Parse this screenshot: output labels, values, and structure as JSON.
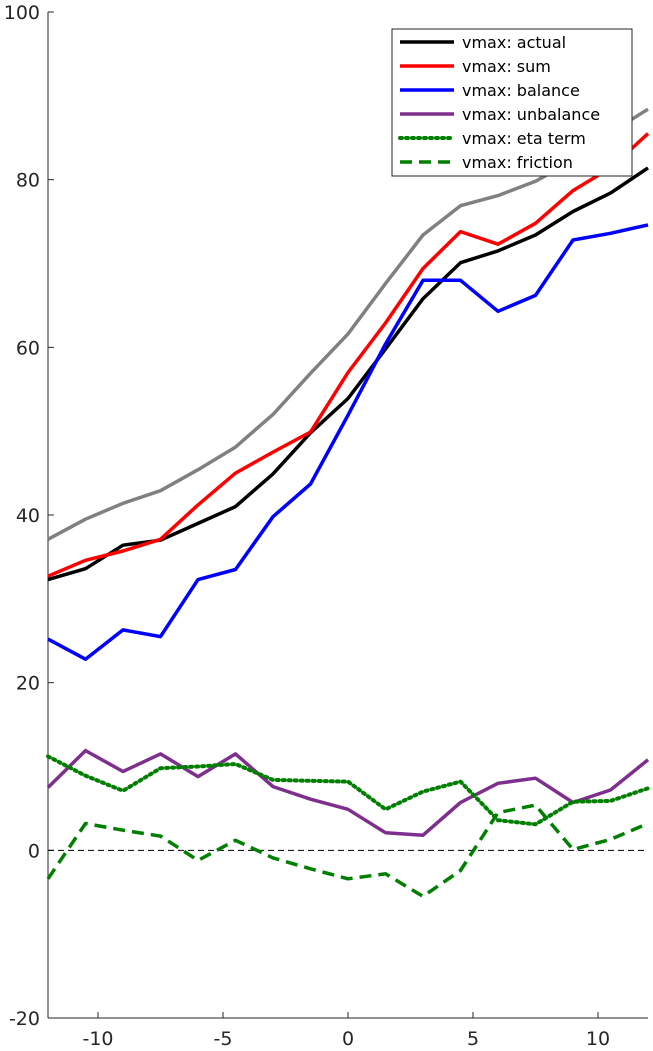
{
  "chart_data": {
    "type": "line",
    "xlim": [
      -12,
      12
    ],
    "ylim": [
      -20,
      100
    ],
    "x_ticks": [
      -10,
      -5,
      0,
      5,
      10
    ],
    "y_ticks": [
      -20,
      0,
      20,
      40,
      60,
      80,
      100
    ],
    "grid": false,
    "legend_position": "top-right",
    "reference_lines": [
      {
        "y": 0,
        "style": "dashed",
        "color": "#000000"
      }
    ],
    "x": [
      -12,
      -10.5,
      -9,
      -7.5,
      -6,
      -4.5,
      -3,
      -1.5,
      0,
      1.5,
      3,
      4.5,
      6,
      7.5,
      9,
      10.5,
      12
    ],
    "series": [
      {
        "name": "vmax: actual",
        "color": "#000000",
        "dash": "solid",
        "in_legend": true,
        "values": [
          32.3,
          33.6,
          36.4,
          37.0,
          39.0,
          41.0,
          44.9,
          49.8,
          53.9,
          59.8,
          65.8,
          70.1,
          71.5,
          73.4,
          76.2,
          78.4,
          81.4
        ]
      },
      {
        "name": "vmax: sum",
        "color": "#ff0000",
        "dash": "solid",
        "in_legend": true,
        "values": [
          32.7,
          34.6,
          35.7,
          37.1,
          41.2,
          45.0,
          47.5,
          49.9,
          57.0,
          62.9,
          69.4,
          73.8,
          72.3,
          74.8,
          78.7,
          81.4,
          85.5
        ]
      },
      {
        "name": "vmax: balance",
        "color": "#0000ff",
        "dash": "solid",
        "in_legend": true,
        "values": [
          25.2,
          22.8,
          26.3,
          25.5,
          32.3,
          33.5,
          39.8,
          43.7,
          51.9,
          60.4,
          68.0,
          68.0,
          64.3,
          66.2,
          72.8,
          73.6,
          74.6
        ]
      },
      {
        "name": "vmax: unbalance",
        "color": "#7e2f8e",
        "dash": "solid",
        "in_legend": true,
        "values": [
          7.5,
          11.9,
          9.4,
          11.5,
          8.8,
          11.5,
          7.6,
          6.1,
          4.9,
          2.1,
          1.8,
          5.7,
          8.0,
          8.6,
          5.7,
          7.2,
          10.8
        ]
      },
      {
        "name": "vmax: eta term",
        "color": "#007f00",
        "dash": "dotted",
        "in_legend": true,
        "values": [
          11.2,
          8.9,
          7.1,
          9.8,
          10.0,
          10.3,
          8.4,
          8.3,
          8.2,
          4.9,
          7.0,
          8.2,
          3.6,
          3.1,
          5.8,
          5.9,
          7.4
        ]
      },
      {
        "name": "vmax: friction",
        "color": "#007f00",
        "dash": "dashed",
        "in_legend": true,
        "values": [
          -3.4,
          3.2,
          2.4,
          1.7,
          -1.2,
          1.2,
          -0.9,
          -2.2,
          -3.4,
          -2.8,
          -5.5,
          -2.4,
          4.5,
          5.4,
          0.1,
          1.3,
          3.2
        ]
      },
      {
        "color": "#808080",
        "dash": "solid",
        "in_legend": false,
        "values": [
          37.1,
          39.5,
          41.4,
          42.9,
          45.4,
          48.1,
          52.0,
          56.9,
          61.6,
          67.6,
          73.4,
          76.9,
          78.1,
          79.8,
          82.3,
          85.6,
          88.4
        ]
      }
    ]
  }
}
